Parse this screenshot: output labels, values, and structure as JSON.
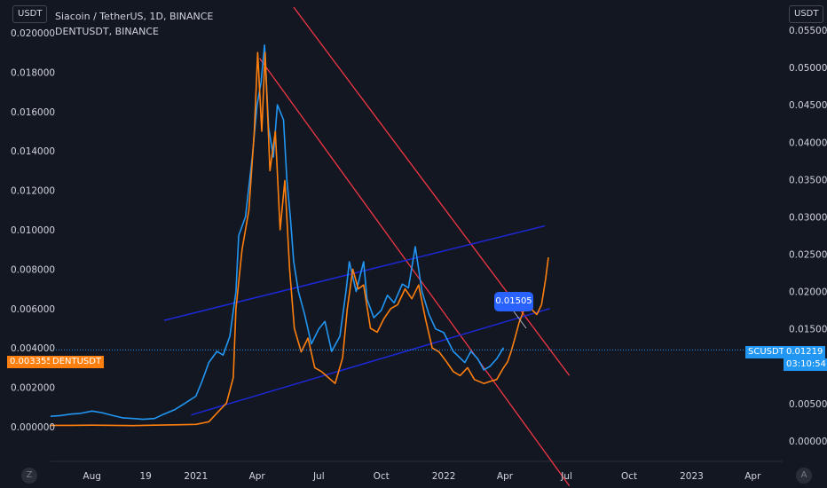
{
  "units": {
    "left": "USDT",
    "right": "USDT"
  },
  "legend": {
    "main": "Siacoin / TetherUS, 1D, BINANCE",
    "compare": "DENTUSDT, BINANCE"
  },
  "badges": {
    "dent_price": "0.003355",
    "dent_name": "DENTUSDT",
    "sc_name": "SCUSDT",
    "sc_price": "0.01219",
    "sc_countdown": "03:10:54"
  },
  "callout": "0.01505",
  "icons": {
    "left_corner": "Z",
    "right_corner": "A"
  },
  "colors": {
    "background": "#131722",
    "sc_series": "#2196f3",
    "dent_series": "#ff7f0e",
    "channel": "#1c28d6",
    "downtrend": "#f23645",
    "callout": "#2962ff"
  },
  "chart_data": {
    "type": "line",
    "x_ticks": [
      "Aug",
      "19",
      "2021",
      "Apr",
      "Jul",
      "Oct",
      "2022",
      "Apr",
      "Jul",
      "Oct",
      "2023",
      "Apr"
    ],
    "left_axis": {
      "ticks": [
        "0.020000",
        "0.018000",
        "0.016000",
        "0.014000",
        "0.012000",
        "0.010000",
        "0.008000",
        "0.006000",
        "0.004000",
        "0.002000",
        "0.000000"
      ],
      "ylim": [
        0,
        0.02
      ]
    },
    "right_axis": {
      "ticks": [
        "0.05500",
        "0.05000",
        "0.04500",
        "0.04000",
        "0.03500",
        "0.03000",
        "0.02500",
        "0.02000",
        "0.01500",
        "0.01000",
        "0.00500",
        "0.00000"
      ],
      "ylim": [
        0,
        0.055
      ]
    },
    "x_range": [
      "2020-06-01",
      "2023-05-15"
    ],
    "series": [
      {
        "name": "SCUSDT",
        "axis": "right",
        "points": [
          [
            "2020-06-01",
            0.0033
          ],
          [
            "2020-06-15",
            0.0034
          ],
          [
            "2020-07-01",
            0.0036
          ],
          [
            "2020-07-15",
            0.0037
          ],
          [
            "2020-08-01",
            0.004
          ],
          [
            "2020-08-15",
            0.0038
          ],
          [
            "2020-09-01",
            0.0034
          ],
          [
            "2020-09-15",
            0.0031
          ],
          [
            "2020-10-01",
            0.003
          ],
          [
            "2020-10-15",
            0.0029
          ],
          [
            "2020-11-01",
            0.003
          ],
          [
            "2020-11-15",
            0.0036
          ],
          [
            "2020-12-01",
            0.0042
          ],
          [
            "2020-12-15",
            0.005
          ],
          [
            "2021-01-01",
            0.006
          ],
          [
            "2021-01-10",
            0.008
          ],
          [
            "2021-01-20",
            0.0105
          ],
          [
            "2021-02-01",
            0.012
          ],
          [
            "2021-02-10",
            0.0115
          ],
          [
            "2021-02-20",
            0.014
          ],
          [
            "2021-03-01",
            0.02
          ],
          [
            "2021-03-05",
            0.0275
          ],
          [
            "2021-03-15",
            0.03
          ],
          [
            "2021-03-25",
            0.038
          ],
          [
            "2021-04-01",
            0.045
          ],
          [
            "2021-04-07",
            0.048
          ],
          [
            "2021-04-12",
            0.053
          ],
          [
            "2021-04-18",
            0.042
          ],
          [
            "2021-04-25",
            0.038
          ],
          [
            "2021-05-01",
            0.045
          ],
          [
            "2021-05-10",
            0.043
          ],
          [
            "2021-05-15",
            0.035
          ],
          [
            "2021-05-20",
            0.03
          ],
          [
            "2021-05-25",
            0.024
          ],
          [
            "2021-06-01",
            0.02
          ],
          [
            "2021-06-10",
            0.017
          ],
          [
            "2021-06-20",
            0.013
          ],
          [
            "2021-07-01",
            0.015
          ],
          [
            "2021-07-10",
            0.016
          ],
          [
            "2021-07-20",
            0.012
          ],
          [
            "2021-08-01",
            0.014
          ],
          [
            "2021-08-10",
            0.02
          ],
          [
            "2021-08-15",
            0.024
          ],
          [
            "2021-08-25",
            0.02
          ],
          [
            "2021-09-05",
            0.024
          ],
          [
            "2021-09-10",
            0.019
          ],
          [
            "2021-09-20",
            0.0165
          ],
          [
            "2021-10-01",
            0.0175
          ],
          [
            "2021-10-10",
            0.0195
          ],
          [
            "2021-10-20",
            0.0185
          ],
          [
            "2021-11-01",
            0.021
          ],
          [
            "2021-11-10",
            0.0205
          ],
          [
            "2021-11-20",
            0.026
          ],
          [
            "2021-11-30",
            0.02
          ],
          [
            "2021-12-10",
            0.017
          ],
          [
            "2021-12-20",
            0.015
          ],
          [
            "2022-01-01",
            0.0145
          ],
          [
            "2022-01-15",
            0.012
          ],
          [
            "2022-02-01",
            0.0105
          ],
          [
            "2022-02-10",
            0.012
          ],
          [
            "2022-02-20",
            0.011
          ],
          [
            "2022-03-01",
            0.0095
          ],
          [
            "2022-03-10",
            0.01
          ],
          [
            "2022-03-20",
            0.011
          ],
          [
            "2022-03-30",
            0.0125
          ]
        ]
      },
      {
        "name": "DENTUSDT",
        "axis": "left",
        "points": [
          [
            "2020-06-01",
            7e-05
          ],
          [
            "2020-07-01",
            7e-05
          ],
          [
            "2020-08-01",
            8e-05
          ],
          [
            "2020-09-01",
            7e-05
          ],
          [
            "2020-10-01",
            6e-05
          ],
          [
            "2020-11-01",
            8e-05
          ],
          [
            "2020-12-01",
            0.0001
          ],
          [
            "2021-01-01",
            0.00012
          ],
          [
            "2021-01-20",
            0.00025
          ],
          [
            "2021-02-01",
            0.0007
          ],
          [
            "2021-02-15",
            0.0012
          ],
          [
            "2021-02-25",
            0.0025
          ],
          [
            "2021-03-01",
            0.006
          ],
          [
            "2021-03-10",
            0.009
          ],
          [
            "2021-03-20",
            0.011
          ],
          [
            "2021-03-28",
            0.015
          ],
          [
            "2021-04-02",
            0.019
          ],
          [
            "2021-04-08",
            0.015
          ],
          [
            "2021-04-13",
            0.019
          ],
          [
            "2021-04-20",
            0.013
          ],
          [
            "2021-04-28",
            0.015
          ],
          [
            "2021-05-05",
            0.01
          ],
          [
            "2021-05-12",
            0.0125
          ],
          [
            "2021-05-19",
            0.008
          ],
          [
            "2021-05-26",
            0.005
          ],
          [
            "2021-06-05",
            0.0038
          ],
          [
            "2021-06-15",
            0.0045
          ],
          [
            "2021-06-25",
            0.003
          ],
          [
            "2021-07-05",
            0.0028
          ],
          [
            "2021-07-15",
            0.0025
          ],
          [
            "2021-07-25",
            0.0022
          ],
          [
            "2021-08-05",
            0.0035
          ],
          [
            "2021-08-12",
            0.006
          ],
          [
            "2021-08-20",
            0.008
          ],
          [
            "2021-08-28",
            0.007
          ],
          [
            "2021-09-05",
            0.0072
          ],
          [
            "2021-09-15",
            0.005
          ],
          [
            "2021-09-25",
            0.0048
          ],
          [
            "2021-10-05",
            0.0055
          ],
          [
            "2021-10-15",
            0.006
          ],
          [
            "2021-10-25",
            0.0062
          ],
          [
            "2021-11-05",
            0.007
          ],
          [
            "2021-11-15",
            0.0065
          ],
          [
            "2021-11-25",
            0.0072
          ],
          [
            "2021-12-05",
            0.0055
          ],
          [
            "2021-12-15",
            0.004
          ],
          [
            "2021-12-25",
            0.0038
          ],
          [
            "2022-01-05",
            0.0033
          ],
          [
            "2022-01-15",
            0.0028
          ],
          [
            "2022-01-25",
            0.0026
          ],
          [
            "2022-02-05",
            0.003
          ],
          [
            "2022-02-15",
            0.0024
          ],
          [
            "2022-03-01",
            0.0022
          ],
          [
            "2022-03-10",
            0.0023
          ],
          [
            "2022-03-20",
            0.0024
          ],
          [
            "2022-03-30",
            0.003
          ],
          [
            "2022-04-05",
            0.0033
          ]
        ]
      },
      {
        "name": "DENTUSDT projection",
        "axis": "left",
        "points": [
          [
            "2022-04-05",
            0.0033
          ],
          [
            "2022-04-10",
            0.0038
          ],
          [
            "2022-04-15",
            0.0044
          ],
          [
            "2022-04-22",
            0.0053
          ],
          [
            "2022-05-01",
            0.0061
          ],
          [
            "2022-05-08",
            0.0062
          ],
          [
            "2022-05-12",
            0.0059
          ],
          [
            "2022-05-18",
            0.0057
          ],
          [
            "2022-05-25",
            0.0062
          ],
          [
            "2022-05-31",
            0.0075
          ],
          [
            "2022-06-04",
            0.0086
          ]
        ]
      }
    ],
    "trend_lines": [
      {
        "name": "downtrend",
        "points": [
          [
            "2021-04-05",
            0.0187
          ],
          [
            "2022-07-05",
            -0.003
          ]
        ],
        "axis": "left"
      },
      {
        "name": "downtrend-outer",
        "points": [
          [
            "2021-05-25",
            0.0213
          ],
          [
            "2022-07-05",
            0.0026
          ]
        ],
        "axis": "left"
      },
      {
        "name": "channel-upper",
        "points": [
          [
            "2020-11-15",
            0.0054
          ],
          [
            "2022-05-30",
            0.0102
          ]
        ],
        "axis": "left"
      },
      {
        "name": "channel-lower",
        "points": [
          [
            "2020-12-25",
            0.0006
          ],
          [
            "2022-06-06",
            0.006
          ]
        ],
        "axis": "left"
      }
    ],
    "last_price_line": {
      "value": 0.01219,
      "axis": "right"
    }
  }
}
